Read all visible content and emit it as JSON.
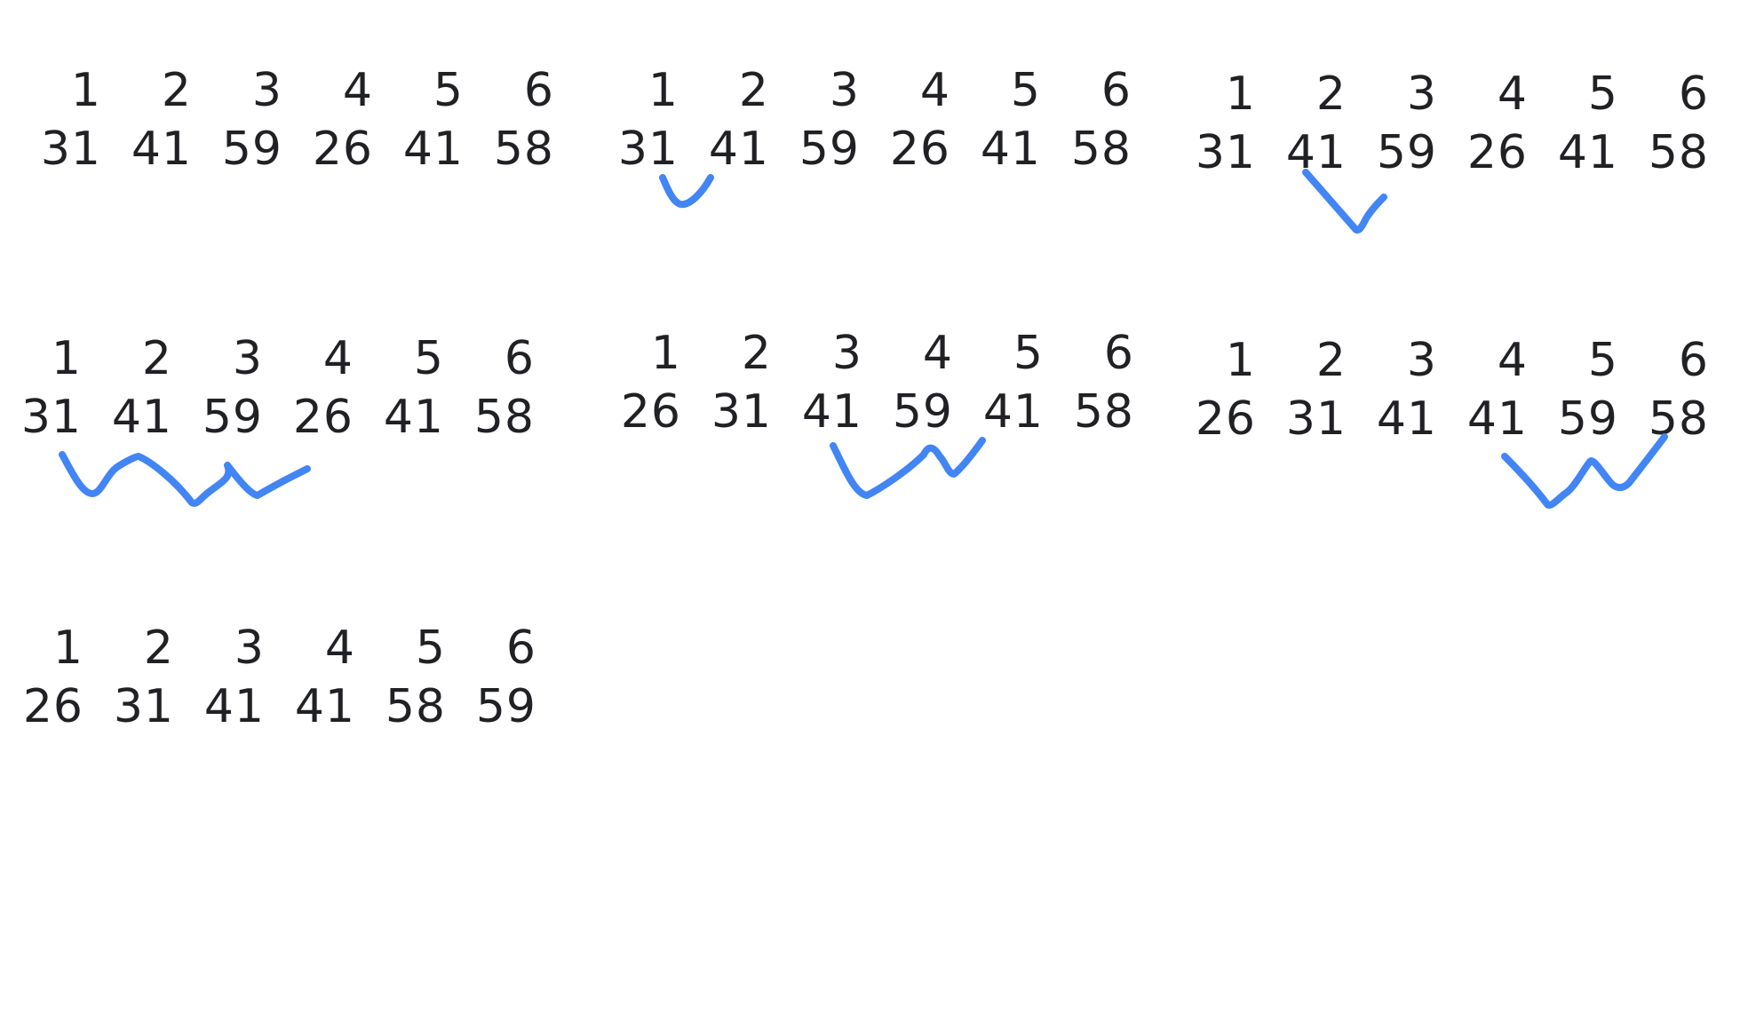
{
  "ink_color": "#4285f4",
  "text_color": "#202124",
  "steps": [
    {
      "indices": [
        "1",
        "2",
        "3",
        "4",
        "5",
        "6"
      ],
      "values": [
        "31",
        "41",
        "59",
        "26",
        "41",
        "58"
      ]
    },
    {
      "indices": [
        "1",
        "2",
        "3",
        "4",
        "5",
        "6"
      ],
      "values": [
        "31",
        "41",
        "59",
        "26",
        "41",
        "58"
      ]
    },
    {
      "indices": [
        "1",
        "2",
        "3",
        "4",
        "5",
        "6"
      ],
      "values": [
        "31",
        "41",
        "59",
        "26",
        "41",
        "58"
      ]
    },
    {
      "indices": [
        "1",
        "2",
        "3",
        "4",
        "5",
        "6"
      ],
      "values": [
        "31",
        "41",
        "59",
        "26",
        "41",
        "58"
      ]
    },
    {
      "indices": [
        "1",
        "2",
        "3",
        "4",
        "5",
        "6"
      ],
      "values": [
        "26",
        "31",
        "41",
        "59",
        "41",
        "58"
      ]
    },
    {
      "indices": [
        "1",
        "2",
        "3",
        "4",
        "5",
        "6"
      ],
      "values": [
        "26",
        "31",
        "41",
        "41",
        "59",
        "58"
      ]
    },
    {
      "indices": [
        "1",
        "2",
        "3",
        "4",
        "5",
        "6"
      ],
      "values": [
        "26",
        "31",
        "41",
        "41",
        "58",
        "59"
      ]
    }
  ]
}
